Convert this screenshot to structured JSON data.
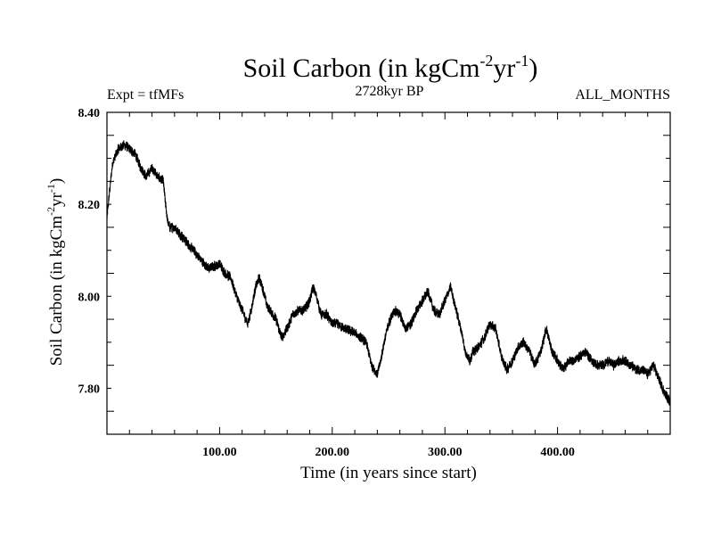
{
  "chart_data": {
    "type": "line",
    "title": {
      "main": "Soil Carbon (in kgCm",
      "exp1": "-2",
      "mid": "yr",
      "exp2": "-1",
      "end": ")"
    },
    "subtitle_left": "Expt = tfMFs",
    "subtitle_center": "2728kyr BP",
    "subtitle_right": "ALL_MONTHS",
    "xlabel": "Time (in years since start)",
    "ylabel": {
      "main": "Soil Carbon (in kgCm",
      "exp1": "-2",
      "mid": "yr",
      "exp2": "-1",
      "end": ")"
    },
    "xlim": [
      0,
      500
    ],
    "ylim": [
      7.7,
      8.4
    ],
    "xticks": [
      {
        "value": 100,
        "label": "100.00"
      },
      {
        "value": 200,
        "label": "200.00"
      },
      {
        "value": 300,
        "label": "300.00"
      },
      {
        "value": 400,
        "label": "400.00"
      }
    ],
    "yticks": [
      {
        "value": 7.8,
        "label": "7.80"
      },
      {
        "value": 8.0,
        "label": "8.00"
      },
      {
        "value": 8.2,
        "label": "8.20"
      },
      {
        "value": 8.4,
        "label": "8.40"
      }
    ],
    "series": [
      {
        "name": "Soil Carbon",
        "noise_amplitude": 0.012,
        "x": [
          0,
          2,
          5,
          10,
          15,
          20,
          25,
          30,
          35,
          40,
          45,
          50,
          52,
          54,
          56,
          60,
          70,
          80,
          90,
          100,
          105,
          110,
          115,
          120,
          125,
          128,
          132,
          135,
          138,
          142,
          150,
          155,
          160,
          165,
          170,
          175,
          180,
          183,
          186,
          190,
          195,
          200,
          205,
          210,
          220,
          230,
          235,
          240,
          243,
          246,
          250,
          255,
          260,
          265,
          270,
          275,
          280,
          285,
          290,
          295,
          300,
          305,
          308,
          312,
          315,
          318,
          322,
          325,
          330,
          335,
          340,
          345,
          350,
          355,
          360,
          365,
          370,
          375,
          380,
          385,
          390,
          395,
          400,
          405,
          410,
          415,
          420,
          425,
          430,
          435,
          440,
          445,
          450,
          455,
          460,
          465,
          470,
          475,
          480,
          485,
          490,
          495,
          500
        ],
        "y": [
          8.17,
          8.22,
          8.29,
          8.32,
          8.33,
          8.32,
          8.31,
          8.28,
          8.26,
          8.28,
          8.26,
          8.25,
          8.2,
          8.16,
          8.15,
          8.15,
          8.12,
          8.09,
          8.06,
          8.07,
          8.05,
          8.04,
          8.0,
          7.97,
          7.94,
          7.97,
          8.02,
          8.04,
          8.02,
          7.98,
          7.95,
          7.91,
          7.93,
          7.96,
          7.97,
          7.97,
          7.99,
          8.02,
          8.0,
          7.96,
          7.96,
          7.94,
          7.94,
          7.93,
          7.92,
          7.9,
          7.85,
          7.83,
          7.86,
          7.9,
          7.94,
          7.97,
          7.96,
          7.93,
          7.94,
          7.97,
          7.99,
          8.01,
          7.97,
          7.96,
          7.99,
          8.02,
          7.99,
          7.95,
          7.92,
          7.88,
          7.86,
          7.88,
          7.89,
          7.91,
          7.94,
          7.93,
          7.87,
          7.84,
          7.86,
          7.89,
          7.9,
          7.88,
          7.85,
          7.88,
          7.93,
          7.88,
          7.86,
          7.84,
          7.86,
          7.86,
          7.87,
          7.88,
          7.86,
          7.85,
          7.85,
          7.86,
          7.85,
          7.86,
          7.86,
          7.85,
          7.84,
          7.84,
          7.83,
          7.85,
          7.82,
          7.79,
          7.77
        ]
      }
    ]
  }
}
